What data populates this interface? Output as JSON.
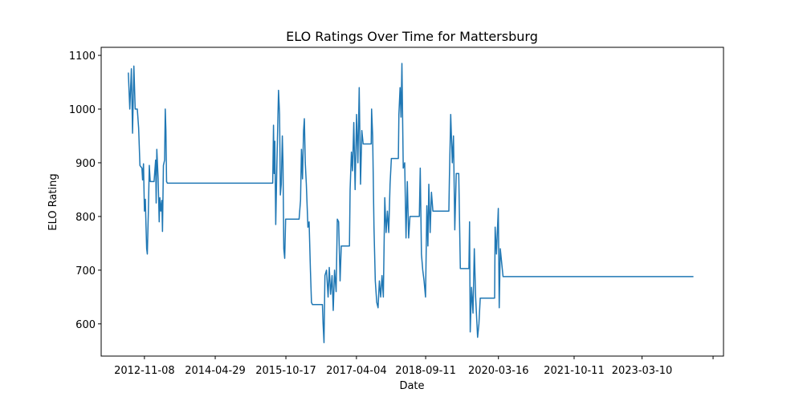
{
  "chart_data": {
    "type": "line",
    "title": "ELO Ratings Over Time for Mattersburg",
    "x_label": "Date",
    "y_label": "ELO Rating",
    "color": "#1f77b4",
    "xlim": [
      "2011-12-16",
      "2024-11-17"
    ],
    "xticks": [
      "2012-11-08",
      "2014-04-29",
      "2015-10-17",
      "2017-04-04",
      "2018-09-11",
      "2020-03-16",
      "2021-10-11",
      "2023-03-10",
      {
        "value": "2024-08-30",
        "label": null
      }
    ],
    "ylim": [
      540,
      1115
    ],
    "yticks": [
      600,
      700,
      800,
      900,
      1000,
      1100
    ],
    "x": [
      "2012-07-09",
      "2012-07-20",
      "2012-08-01",
      "2012-08-10",
      "2012-08-20",
      "2012-08-30",
      "2012-09-15",
      "2012-09-25",
      "2012-10-05",
      "2012-10-20",
      "2012-10-25",
      "2012-11-01",
      "2012-11-08",
      "2012-11-15",
      "2012-11-20",
      "2012-11-25",
      "2012-11-30",
      "2012-12-08",
      "2012-12-15",
      "2012-12-22",
      "2013-01-20",
      "2013-02-01",
      "2013-02-05",
      "2013-02-10",
      "2013-02-20",
      "2013-02-28",
      "2013-03-05",
      "2013-03-12",
      "2013-03-20",
      "2013-03-25",
      "2013-04-01",
      "2013-04-10",
      "2013-04-15",
      "2013-04-20",
      "2013-04-25",
      "2013-05-01",
      "2015-07-09",
      "2015-07-15",
      "2015-07-20",
      "2015-07-25",
      "2015-08-01",
      "2015-08-10",
      "2015-08-18",
      "2015-08-22",
      "2015-08-30",
      "2015-09-05",
      "2015-09-12",
      "2015-09-20",
      "2015-09-25",
      "2015-10-01",
      "2015-10-08",
      "2015-10-15",
      "2016-01-25",
      "2016-02-05",
      "2016-02-12",
      "2016-02-20",
      "2016-02-28",
      "2016-03-05",
      "2016-03-12",
      "2016-03-20",
      "2016-04-01",
      "2016-04-10",
      "2016-04-20",
      "2016-04-28",
      "2016-05-05",
      "2016-07-20",
      "2016-07-25",
      "2016-08-01",
      "2016-08-08",
      "2016-08-20",
      "2016-09-01",
      "2016-09-10",
      "2016-09-20",
      "2016-10-01",
      "2016-10-10",
      "2016-10-20",
      "2016-11-01",
      "2016-11-10",
      "2016-11-20",
      "2016-12-01",
      "2016-12-10",
      "2017-02-10",
      "2017-02-15",
      "2017-02-25",
      "2017-03-05",
      "2017-03-15",
      "2017-03-25",
      "2017-04-05",
      "2017-04-15",
      "2017-04-25",
      "2017-05-05",
      "2017-05-15",
      "2017-05-25",
      "2017-07-25",
      "2017-07-28",
      "2017-08-05",
      "2017-08-15",
      "2017-08-25",
      "2017-09-05",
      "2017-09-15",
      "2017-09-25",
      "2017-10-05",
      "2017-10-15",
      "2017-10-25",
      "2017-11-05",
      "2017-11-15",
      "2017-11-25",
      "2017-12-05",
      "2017-12-15",
      "2017-12-25",
      "2018-02-16",
      "2018-02-20",
      "2018-03-01",
      "2018-03-08",
      "2018-03-15",
      "2018-03-25",
      "2018-04-05",
      "2018-04-15",
      "2018-04-25",
      "2018-05-05",
      "2018-05-15",
      "2018-07-25",
      "2018-08-01",
      "2018-08-10",
      "2018-08-20",
      "2018-08-30",
      "2018-09-10",
      "2018-09-20",
      "2018-09-28",
      "2018-10-05",
      "2018-10-15",
      "2018-10-25",
      "2018-11-05",
      "2019-03-06",
      "2019-03-10",
      "2019-03-20",
      "2019-04-01",
      "2019-04-10",
      "2019-04-20",
      "2019-05-01",
      "2019-05-20",
      "2019-06-01",
      "2019-08-05",
      "2019-08-10",
      "2019-08-15",
      "2019-08-25",
      "2019-09-05",
      "2019-09-15",
      "2019-09-25",
      "2019-10-10",
      "2019-10-20",
      "2019-10-30",
      "2020-02-16",
      "2020-02-20",
      "2020-03-01",
      "2020-03-15",
      "2020-03-22",
      "2020-03-30",
      "2020-04-20",
      "2024-04-03"
    ],
    "values": [
      1068,
      1000,
      1075,
      955,
      1080,
      1000,
      1000,
      965,
      895,
      890,
      868,
      898,
      810,
      832,
      782,
      740,
      730,
      810,
      895,
      865,
      865,
      905,
      825,
      925,
      870,
      790,
      835,
      810,
      830,
      772,
      895,
      905,
      1000,
      960,
      865,
      862,
      862,
      970,
      880,
      940,
      785,
      900,
      990,
      1035,
      990,
      840,
      860,
      950,
      900,
      740,
      722,
      795,
      795,
      830,
      925,
      870,
      960,
      982,
      900,
      860,
      780,
      790,
      700,
      640,
      636,
      636,
      600,
      565,
      690,
      700,
      650,
      705,
      655,
      690,
      625,
      700,
      660,
      795,
      790,
      680,
      745,
      745,
      850,
      920,
      885,
      975,
      850,
      990,
      900,
      1040,
      860,
      960,
      935,
      935,
      1000,
      950,
      780,
      680,
      640,
      630,
      680,
      650,
      690,
      650,
      835,
      770,
      810,
      770,
      860,
      908,
      908,
      990,
      1040,
      985,
      1085,
      890,
      900,
      760,
      865,
      760,
      800,
      800,
      890,
      730,
      700,
      680,
      650,
      820,
      745,
      860,
      770,
      845,
      810,
      810,
      870,
      990,
      900,
      950,
      775,
      880,
      880,
      703,
      703,
      790,
      585,
      668,
      620,
      740,
      650,
      575,
      600,
      648,
      648,
      780,
      730,
      815,
      630,
      740,
      688,
      688
    ]
  }
}
